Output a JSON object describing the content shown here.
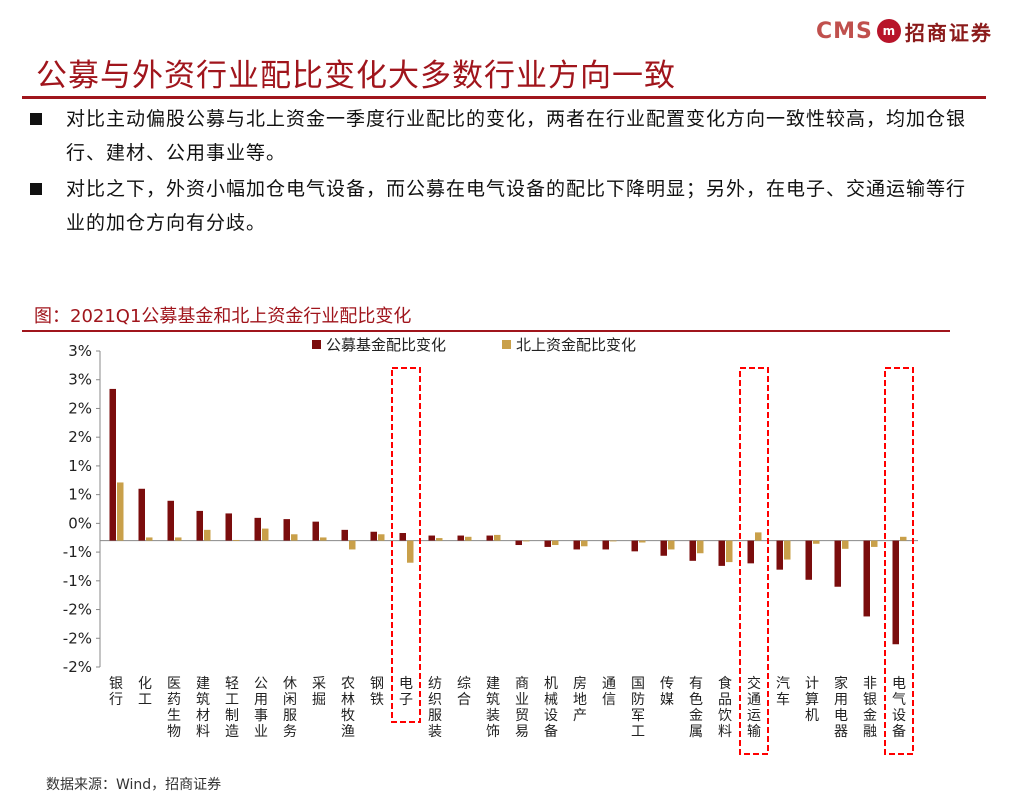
{
  "header": {
    "logo_text": "CMS",
    "logo_mark": "m",
    "logo_cn": "招商证券"
  },
  "title": "公募与外资行业配比变化大多数行业方向一致",
  "bullets": [
    "对比主动偏股公募与北上资金一季度行业配比的变化，两者在行业配置变化方向一致性较高，均加仓银行、建材、公用事业等。",
    "对比之下，外资小幅加仓电气设备，而公募在电气设备的配比下降明显；另外，在电子、交通运输等行业的加仓方向有分歧。"
  ],
  "colors": {
    "accent": "#a0151c",
    "series1": "#7b0d0d",
    "series2": "#c9a04a",
    "highlight": "#ff0000"
  },
  "chart_data": {
    "type": "bar",
    "title": "图：2021Q1公募基金和北上资金行业配比变化",
    "categories": [
      "银行",
      "化工",
      "医药生物",
      "建筑材料",
      "轻工制造",
      "公用事业",
      "休闲服务",
      "采掘",
      "农林牧渔",
      "钢铁",
      "电子",
      "纺织服装",
      "综合",
      "建筑装饰",
      "商业贸易",
      "机械设备",
      "房地产",
      "通信",
      "国防军工",
      "传媒",
      "有色金属",
      "食品饮料",
      "交通运输",
      "汽车",
      "计算机",
      "家用电器",
      "非银金融",
      "电气设备"
    ],
    "series": [
      {
        "name": "公募基金配比变化",
        "values": [
          2.4,
          0.82,
          0.63,
          0.47,
          0.43,
          0.36,
          0.34,
          0.3,
          0.17,
          0.14,
          0.12,
          0.08,
          0.08,
          0.08,
          -0.07,
          -0.1,
          -0.14,
          -0.14,
          -0.17,
          -0.24,
          -0.32,
          -0.4,
          -0.36,
          -0.46,
          -0.62,
          -0.73,
          -1.2,
          -1.64
        ]
      },
      {
        "name": "北上资金配比变化",
        "values": [
          0.92,
          0.05,
          0.05,
          0.17,
          0.01,
          0.19,
          0.1,
          0.05,
          -0.14,
          0.1,
          -0.35,
          0.04,
          0.06,
          0.09,
          -0.01,
          -0.07,
          -0.09,
          -0.01,
          -0.03,
          -0.14,
          -0.2,
          -0.34,
          0.13,
          -0.3,
          -0.05,
          -0.13,
          -0.1,
          0.06
        ]
      }
    ],
    "y_ticks": [
      "3%",
      "3%",
      "2%",
      "2%",
      "1%",
      "1%",
      "0%",
      "-1%",
      "-1%",
      "-2%",
      "-2%",
      "-2%"
    ],
    "ylim": [
      -2,
      3
    ],
    "highlighted_categories": [
      "电子",
      "交通运输",
      "电气设备"
    ],
    "legend_position": "top-center",
    "grid": false
  },
  "source": "数据来源：Wind，招商证券"
}
